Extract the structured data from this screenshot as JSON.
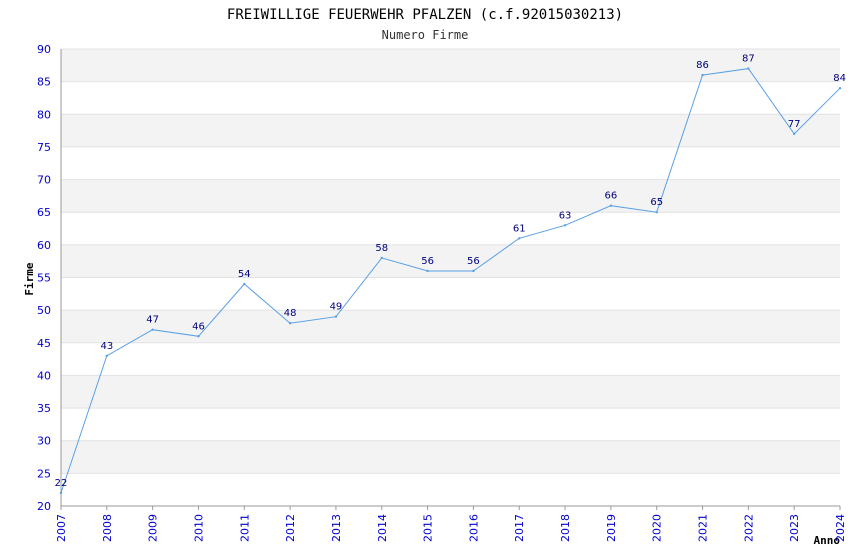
{
  "chart_data": {
    "type": "line",
    "title": "FREIWILLIGE FEUERWEHR PFALZEN (c.f.92015030213)",
    "subtitle": "Numero Firme",
    "xlabel": "Anno",
    "ylabel": "Firme",
    "x": [
      "2007",
      "2008",
      "2009",
      "2010",
      "2011",
      "2012",
      "2013",
      "2014",
      "2015",
      "2016",
      "2017",
      "2018",
      "2019",
      "2020",
      "2021",
      "2022",
      "2023",
      "2024"
    ],
    "values": [
      22,
      43,
      47,
      46,
      54,
      48,
      49,
      58,
      56,
      56,
      61,
      63,
      66,
      65,
      86,
      87,
      77,
      84
    ],
    "ylim": [
      20,
      90
    ],
    "yticks": [
      20,
      25,
      30,
      35,
      40,
      45,
      50,
      55,
      60,
      65,
      70,
      75,
      80,
      85,
      90
    ],
    "grid": true,
    "colors": {
      "line": "#5aa0e6",
      "band": "#f3f3f3",
      "tick_text": "#0000cc",
      "data_label": "#000080"
    }
  }
}
